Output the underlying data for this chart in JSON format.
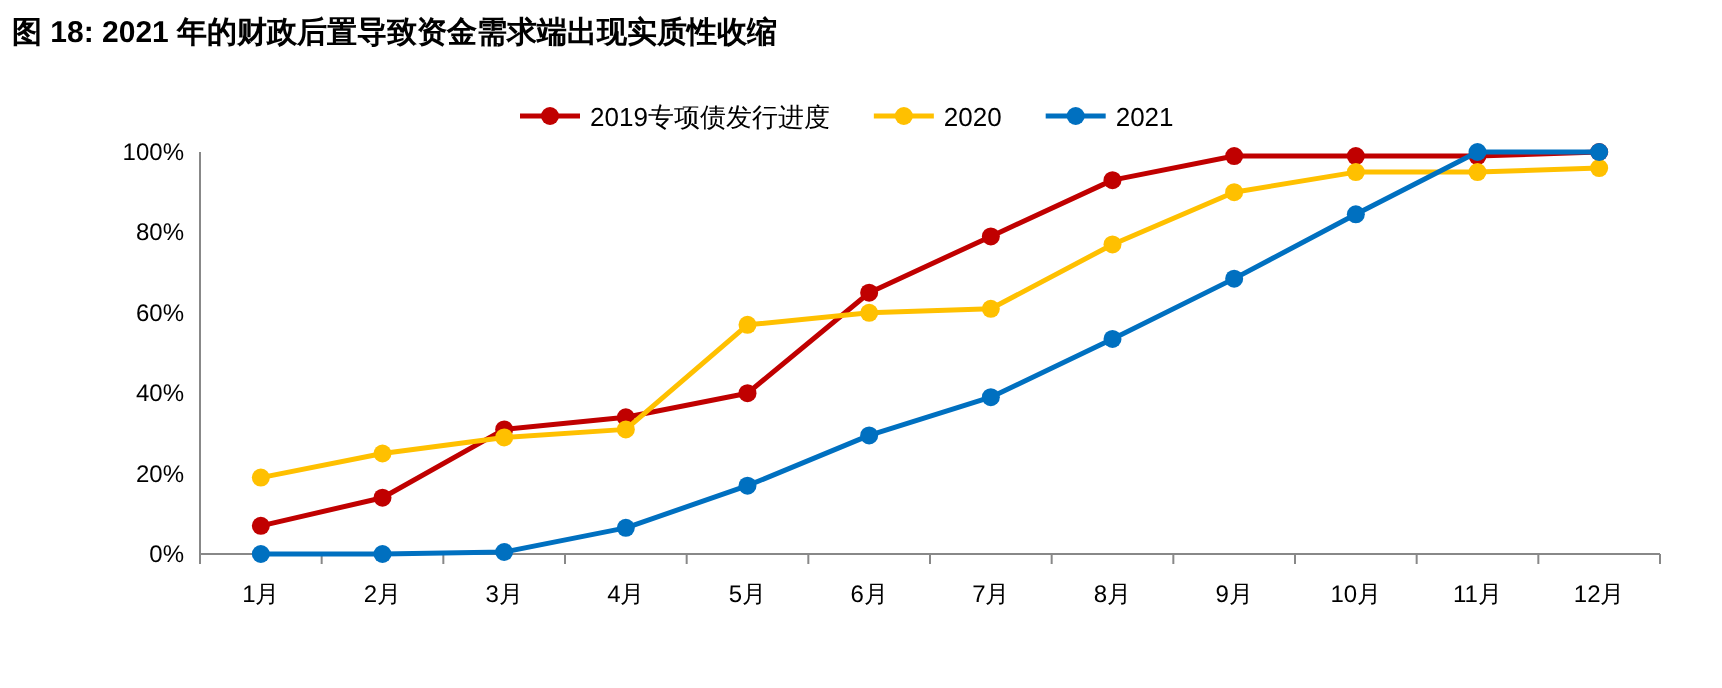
{
  "chart_data": {
    "type": "line",
    "title": "图 18: 2021 年的财政后置导致资金需求端出现实质性收缩",
    "categories": [
      "1月",
      "2月",
      "3月",
      "4月",
      "5月",
      "6月",
      "7月",
      "8月",
      "9月",
      "10月",
      "11月",
      "12月"
    ],
    "series": [
      {
        "name": "2019专项债发行进度",
        "color": "#c00000",
        "values": [
          7,
          14,
          31,
          34,
          40,
          65,
          79,
          93,
          99,
          99,
          99,
          100
        ]
      },
      {
        "name": "2020",
        "color": "#ffc000",
        "values": [
          19,
          25,
          29,
          31,
          57,
          60,
          61,
          77,
          90,
          95,
          95,
          96
        ]
      },
      {
        "name": "2021",
        "color": "#0070c0",
        "values": [
          0,
          0,
          0.5,
          6.5,
          17,
          29.5,
          39,
          53.5,
          68.5,
          84.5,
          100,
          100
        ]
      }
    ],
    "ylim": [
      0,
      100
    ],
    "yticks": [
      {
        "value": 0,
        "label": "0%"
      },
      {
        "value": 20,
        "label": "20%"
      },
      {
        "value": 40,
        "label": "40%"
      },
      {
        "value": 60,
        "label": "60%"
      },
      {
        "value": 80,
        "label": "80%"
      },
      {
        "value": 100,
        "label": "100%"
      }
    ],
    "legend": "top",
    "marker": "circle",
    "line_style": "solid"
  }
}
